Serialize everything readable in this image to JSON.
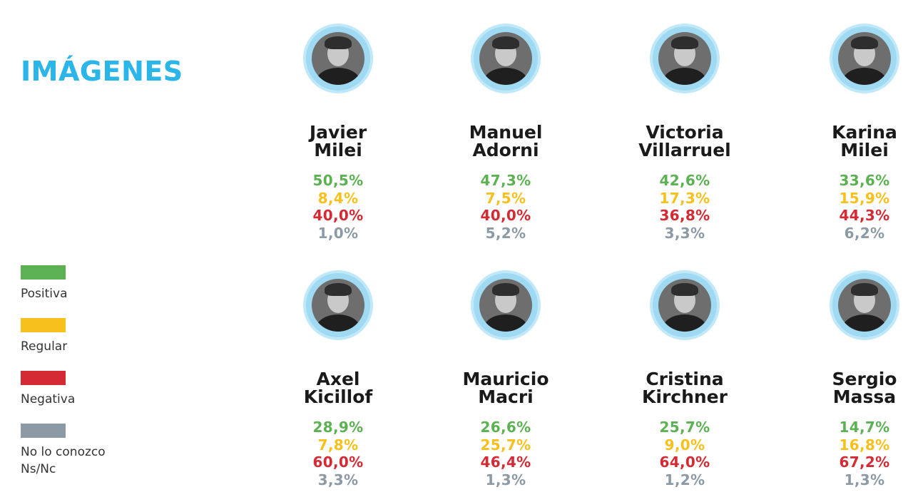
{
  "title": "IMÁGENES",
  "colors": {
    "accent": "#2bb5e8",
    "positiva": "#5cb152",
    "regular": "#f7c01c",
    "negativa": "#d42a34",
    "no_conozco": "#8c9aa5"
  },
  "legend": [
    {
      "label": "Positiva",
      "color": "#5cb152"
    },
    {
      "label": "Regular",
      "color": "#f7c01c"
    },
    {
      "label": "Negativa",
      "color": "#d42a34"
    },
    {
      "label": "No lo conozco\nNs/Nc",
      "color": "#8c9aa5"
    }
  ],
  "chart_data": {
    "type": "table",
    "title": "IMÁGENES",
    "columns": [
      "Positiva",
      "Regular",
      "Negativa",
      "No lo conozco Ns/Nc"
    ],
    "rows": [
      {
        "first": "Javier",
        "last": "Milei",
        "values": [
          "50,5%",
          "8,4%",
          "40,0%",
          "1,0%"
        ]
      },
      {
        "first": "Manuel",
        "last": "Adorni",
        "values": [
          "47,3%",
          "7,5%",
          "40,0%",
          "5,2%"
        ]
      },
      {
        "first": "Victoria",
        "last": "Villarruel",
        "values": [
          "42,6%",
          "17,3%",
          "36,8%",
          "3,3%"
        ]
      },
      {
        "first": "Karina",
        "last": "Milei",
        "values": [
          "33,6%",
          "15,9%",
          "44,3%",
          "6,2%"
        ]
      },
      {
        "first": "Axel",
        "last": "Kicillof",
        "values": [
          "28,9%",
          "7,8%",
          "60,0%",
          "3,3%"
        ]
      },
      {
        "first": "Mauricio",
        "last": "Macri",
        "values": [
          "26,6%",
          "25,7%",
          "46,4%",
          "1,3%"
        ]
      },
      {
        "first": "Cristina",
        "last": "Kirchner",
        "values": [
          "25,7%",
          "9,0%",
          "64,0%",
          "1,2%"
        ]
      },
      {
        "first": "Sergio",
        "last": "Massa",
        "values": [
          "14,7%",
          "16,8%",
          "67,2%",
          "1,3%"
        ]
      }
    ]
  }
}
